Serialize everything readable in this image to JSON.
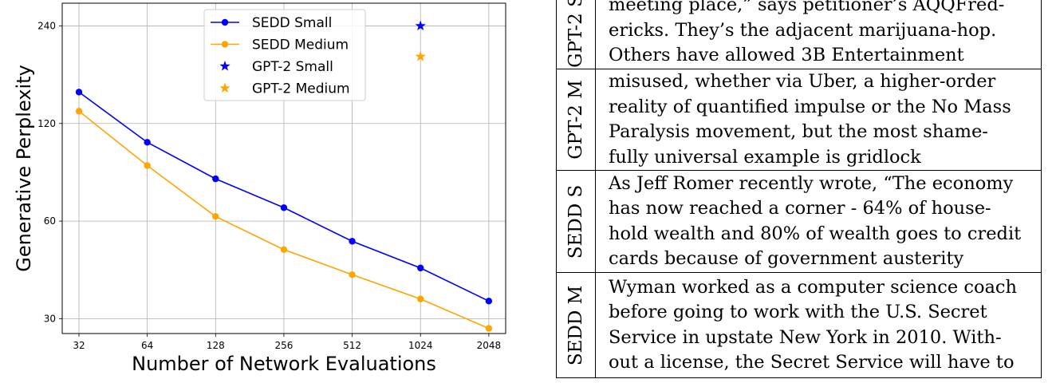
{
  "chart_data": {
    "type": "line",
    "xlabel": "Number of Network Evaluations",
    "ylabel": "Generative Perplexity",
    "x_scale": "log2",
    "y_scale": "log",
    "x_ticks": [
      32,
      64,
      128,
      256,
      512,
      1024,
      2048
    ],
    "y_ticks": [
      30,
      60,
      120,
      240
    ],
    "grid": true,
    "legend_position": "top-center",
    "series": [
      {
        "name": "SEDD Small",
        "color": "#0000ff",
        "marker": "circle",
        "x": [
          32,
          64,
          128,
          256,
          512,
          1024,
          2048
        ],
        "y": [
          150,
          105,
          81,
          66,
          52,
          43,
          34
        ]
      },
      {
        "name": "SEDD Medium",
        "color": "#ffa500",
        "marker": "circle",
        "x": [
          32,
          64,
          128,
          256,
          512,
          1024,
          2048
        ],
        "y": [
          131,
          89,
          62,
          49,
          41,
          34.5,
          28
        ]
      },
      {
        "name": "GPT-2 Small",
        "color": "#0000ff",
        "marker": "star",
        "x": [
          1024
        ],
        "y": [
          240
        ]
      },
      {
        "name": "GPT-2 Medium",
        "color": "#ffa500",
        "marker": "star",
        "x": [
          1024
        ],
        "y": [
          193
        ]
      }
    ]
  },
  "samples": [
    {
      "label": "GPT-2 S",
      "lines": [
        "meeting place,” says petitioner’s AQQFred-",
        "ericks.  They’s the adjacent marijuana-hop.",
        "Others have allowed 3B Entertainment"
      ]
    },
    {
      "label": "GPT-2 M",
      "lines": [
        "misused, whether via Uber, a higher-order",
        "reality of quantified impulse or the No Mass",
        "Paralysis movement, but the most shame-",
        "fully universal example is gridlock"
      ]
    },
    {
      "label": "SEDD S",
      "lines": [
        "As Jeff Romer recently wrote, “The economy",
        "has now reached a corner - 64% of house-",
        "hold wealth and 80% of wealth goes to credit",
        "cards because of government austerity"
      ]
    },
    {
      "label": "SEDD M",
      "lines": [
        "Wyman worked as a computer science coach",
        "before going to work with the U.S. Secret",
        "Service in upstate New York in 2010. With-",
        "out a license, the Secret Service will have to"
      ]
    }
  ]
}
